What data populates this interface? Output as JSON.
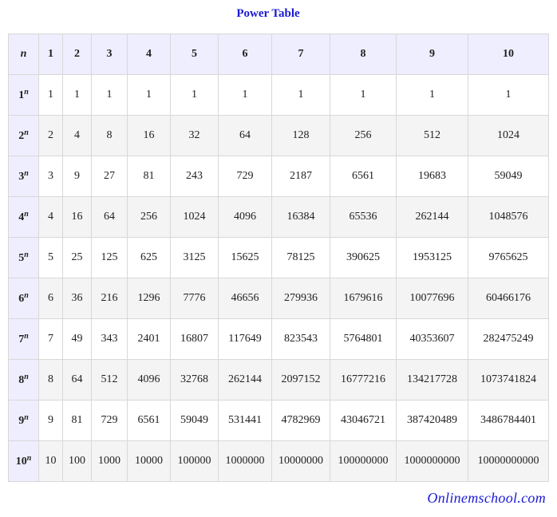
{
  "title": "Power Table",
  "corner_label": "n",
  "exponent_symbol": "n",
  "column_headers": [
    "1",
    "2",
    "3",
    "4",
    "5",
    "6",
    "7",
    "8",
    "9",
    "10"
  ],
  "rows": [
    {
      "base": "1",
      "values": [
        "1",
        "1",
        "1",
        "1",
        "1",
        "1",
        "1",
        "1",
        "1",
        "1"
      ]
    },
    {
      "base": "2",
      "values": [
        "2",
        "4",
        "8",
        "16",
        "32",
        "64",
        "128",
        "256",
        "512",
        "1024"
      ]
    },
    {
      "base": "3",
      "values": [
        "3",
        "9",
        "27",
        "81",
        "243",
        "729",
        "2187",
        "6561",
        "19683",
        "59049"
      ]
    },
    {
      "base": "4",
      "values": [
        "4",
        "16",
        "64",
        "256",
        "1024",
        "4096",
        "16384",
        "65536",
        "262144",
        "1048576"
      ]
    },
    {
      "base": "5",
      "values": [
        "5",
        "25",
        "125",
        "625",
        "3125",
        "15625",
        "78125",
        "390625",
        "1953125",
        "9765625"
      ]
    },
    {
      "base": "6",
      "values": [
        "6",
        "36",
        "216",
        "1296",
        "7776",
        "46656",
        "279936",
        "1679616",
        "10077696",
        "60466176"
      ]
    },
    {
      "base": "7",
      "values": [
        "7",
        "49",
        "343",
        "2401",
        "16807",
        "117649",
        "823543",
        "5764801",
        "40353607",
        "282475249"
      ]
    },
    {
      "base": "8",
      "values": [
        "8",
        "64",
        "512",
        "4096",
        "32768",
        "262144",
        "2097152",
        "16777216",
        "134217728",
        "1073741824"
      ]
    },
    {
      "base": "9",
      "values": [
        "9",
        "81",
        "729",
        "6561",
        "59049",
        "531441",
        "4782969",
        "43046721",
        "387420489",
        "3486784401"
      ]
    },
    {
      "base": "10",
      "values": [
        "10",
        "100",
        "1000",
        "10000",
        "100000",
        "1000000",
        "10000000",
        "100000000",
        "1000000000",
        "10000000000"
      ]
    }
  ],
  "footer": "Onlinemschool.com",
  "colors": {
    "title": "#1a1ad6",
    "header_bg": "#eeeefe",
    "stripe_bg": "#f4f4f4",
    "border": "#d8d8d8"
  }
}
